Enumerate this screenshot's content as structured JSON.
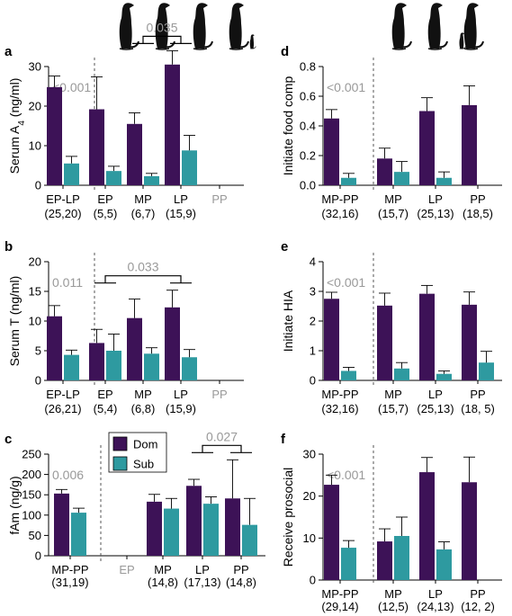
{
  "colors": {
    "dom": "#3d1257",
    "sub": "#2e9aa0",
    "pval": "#999999"
  },
  "legend": {
    "items": [
      {
        "label": "Dom",
        "color": "#3d1257"
      },
      {
        "label": "Sub",
        "color": "#2e9aa0"
      }
    ]
  },
  "icons": {
    "left": "meerkat-silhouette-icon-row-4",
    "right": "meerkat-silhouette-icon-row-3"
  },
  "chart_data": [
    {
      "id": "a",
      "letter": "a",
      "type": "bar",
      "ylabel": "Serum A4 (ng/ml)",
      "ylim": [
        0,
        30
      ],
      "yticks": [
        0,
        10,
        20,
        30
      ],
      "pooled_pvalue": "<0.001",
      "categories": [
        "EP-LP",
        "EP",
        "MP",
        "LP",
        "PP"
      ],
      "ns": [
        "(25,20)",
        "(5,5)",
        "(6,7)",
        "(15,9)",
        ""
      ],
      "present": [
        true,
        true,
        true,
        true,
        false
      ],
      "series": [
        {
          "name": "Dom",
          "values": [
            24.8,
            19.2,
            15.5,
            30.5,
            null
          ],
          "errors": [
            2.8,
            8.2,
            2.8,
            3.5,
            null
          ]
        },
        {
          "name": "Sub",
          "values": [
            5.5,
            3.6,
            2.3,
            8.8,
            null
          ],
          "errors": [
            1.8,
            1.2,
            0.7,
            3.8,
            null
          ]
        }
      ],
      "brackets": [
        {
          "from": 2,
          "to": 3,
          "label": "0.035"
        }
      ]
    },
    {
      "id": "b",
      "letter": "b",
      "type": "bar",
      "ylabel": "Serum T (ng/ml)",
      "ylim": [
        0,
        20
      ],
      "yticks": [
        0,
        5,
        10,
        15,
        20
      ],
      "pooled_pvalue": "0.011",
      "categories": [
        "EP-LP",
        "EP",
        "MP",
        "LP",
        "PP"
      ],
      "ns": [
        "(26,21)",
        "(5,4)",
        "(6,8)",
        "(15,9)",
        ""
      ],
      "present": [
        true,
        true,
        true,
        true,
        false
      ],
      "series": [
        {
          "name": "Dom",
          "values": [
            10.8,
            6.3,
            10.5,
            12.3,
            null
          ],
          "errors": [
            1.8,
            2.3,
            3.2,
            2.9,
            null
          ]
        },
        {
          "name": "Sub",
          "values": [
            4.3,
            5.0,
            4.5,
            3.9,
            null
          ],
          "errors": [
            0.8,
            2.8,
            1.0,
            1.3,
            null
          ]
        }
      ],
      "brackets": [
        {
          "from": 1,
          "to": 3,
          "label": "0.033"
        }
      ]
    },
    {
      "id": "c",
      "letter": "c",
      "type": "bar",
      "ylabel": "fAm (ng/g)",
      "ylim": [
        0,
        250
      ],
      "yticks": [
        0,
        50,
        100,
        150,
        200,
        250
      ],
      "pooled_pvalue": "0.006",
      "categories": [
        "MP-PP",
        "EP",
        "MP",
        "LP",
        "PP"
      ],
      "ns": [
        "(31,19)",
        "",
        "(14,8)",
        "(17,13)",
        "(14,8)"
      ],
      "present": [
        true,
        false,
        true,
        true,
        true
      ],
      "series": [
        {
          "name": "Dom",
          "values": [
            153,
            null,
            133,
            172,
            141
          ],
          "errors": [
            10,
            null,
            18,
            16,
            95
          ]
        },
        {
          "name": "Sub",
          "values": [
            106,
            null,
            116,
            128,
            76
          ],
          "errors": [
            11,
            null,
            25,
            17,
            65
          ]
        }
      ],
      "brackets": [
        {
          "from": 3,
          "to": 4,
          "label": "0.027"
        }
      ]
    },
    {
      "id": "d",
      "letter": "d",
      "type": "bar",
      "ylabel": "Initiate food comp",
      "ylim": [
        0,
        0.8
      ],
      "yticks": [
        0.0,
        0.2,
        0.4,
        0.6,
        0.8
      ],
      "pooled_pvalue": "<0.001",
      "categories": [
        "MP-PP",
        "MP",
        "LP",
        "PP"
      ],
      "ns": [
        "(32,16)",
        "(15,7)",
        "(25,13)",
        "(18,5)"
      ],
      "present": [
        true,
        true,
        true,
        true
      ],
      "series": [
        {
          "name": "Dom",
          "values": [
            0.45,
            0.18,
            0.5,
            0.54
          ],
          "errors": [
            0.06,
            0.07,
            0.09,
            0.13
          ]
        },
        {
          "name": "Sub",
          "values": [
            0.05,
            0.09,
            0.05,
            null
          ],
          "errors": [
            0.03,
            0.07,
            0.04,
            null
          ]
        }
      ],
      "brackets": []
    },
    {
      "id": "e",
      "letter": "e",
      "type": "bar",
      "ylabel": "Initiate HIA",
      "ylim": [
        0,
        4
      ],
      "yticks": [
        0,
        1,
        2,
        3,
        4
      ],
      "pooled_pvalue": "<0.001",
      "categories": [
        "MP-PP",
        "MP",
        "LP",
        "PP"
      ],
      "ns": [
        "(32,16)",
        "(15,7)",
        "(25,13)",
        "(18, 5)"
      ],
      "present": [
        true,
        true,
        true,
        true
      ],
      "series": [
        {
          "name": "Dom",
          "values": [
            2.75,
            2.52,
            2.92,
            2.55
          ],
          "errors": [
            0.22,
            0.42,
            0.28,
            0.43
          ]
        },
        {
          "name": "Sub",
          "values": [
            0.32,
            0.4,
            0.22,
            0.6
          ],
          "errors": [
            0.12,
            0.2,
            0.1,
            0.38
          ]
        }
      ],
      "brackets": []
    },
    {
      "id": "f",
      "letter": "f",
      "type": "bar",
      "ylabel": "Receive prosocial",
      "ylim": [
        0,
        30
      ],
      "yticks": [
        0,
        10,
        20,
        30
      ],
      "pooled_pvalue": "<0.001",
      "categories": [
        "MP-PP",
        "MP",
        "LP",
        "PP"
      ],
      "ns": [
        "(29,14)",
        "(12,5)",
        "(24,13)",
        "(12, 2)"
      ],
      "present": [
        true,
        true,
        true,
        true
      ],
      "series": [
        {
          "name": "Dom",
          "values": [
            22.7,
            9.2,
            25.7,
            23.3
          ],
          "errors": [
            2.3,
            3.0,
            3.5,
            6.0
          ]
        },
        {
          "name": "Sub",
          "values": [
            7.7,
            10.5,
            7.3,
            null
          ],
          "errors": [
            1.7,
            4.5,
            1.8,
            null
          ]
        }
      ],
      "brackets": []
    }
  ]
}
